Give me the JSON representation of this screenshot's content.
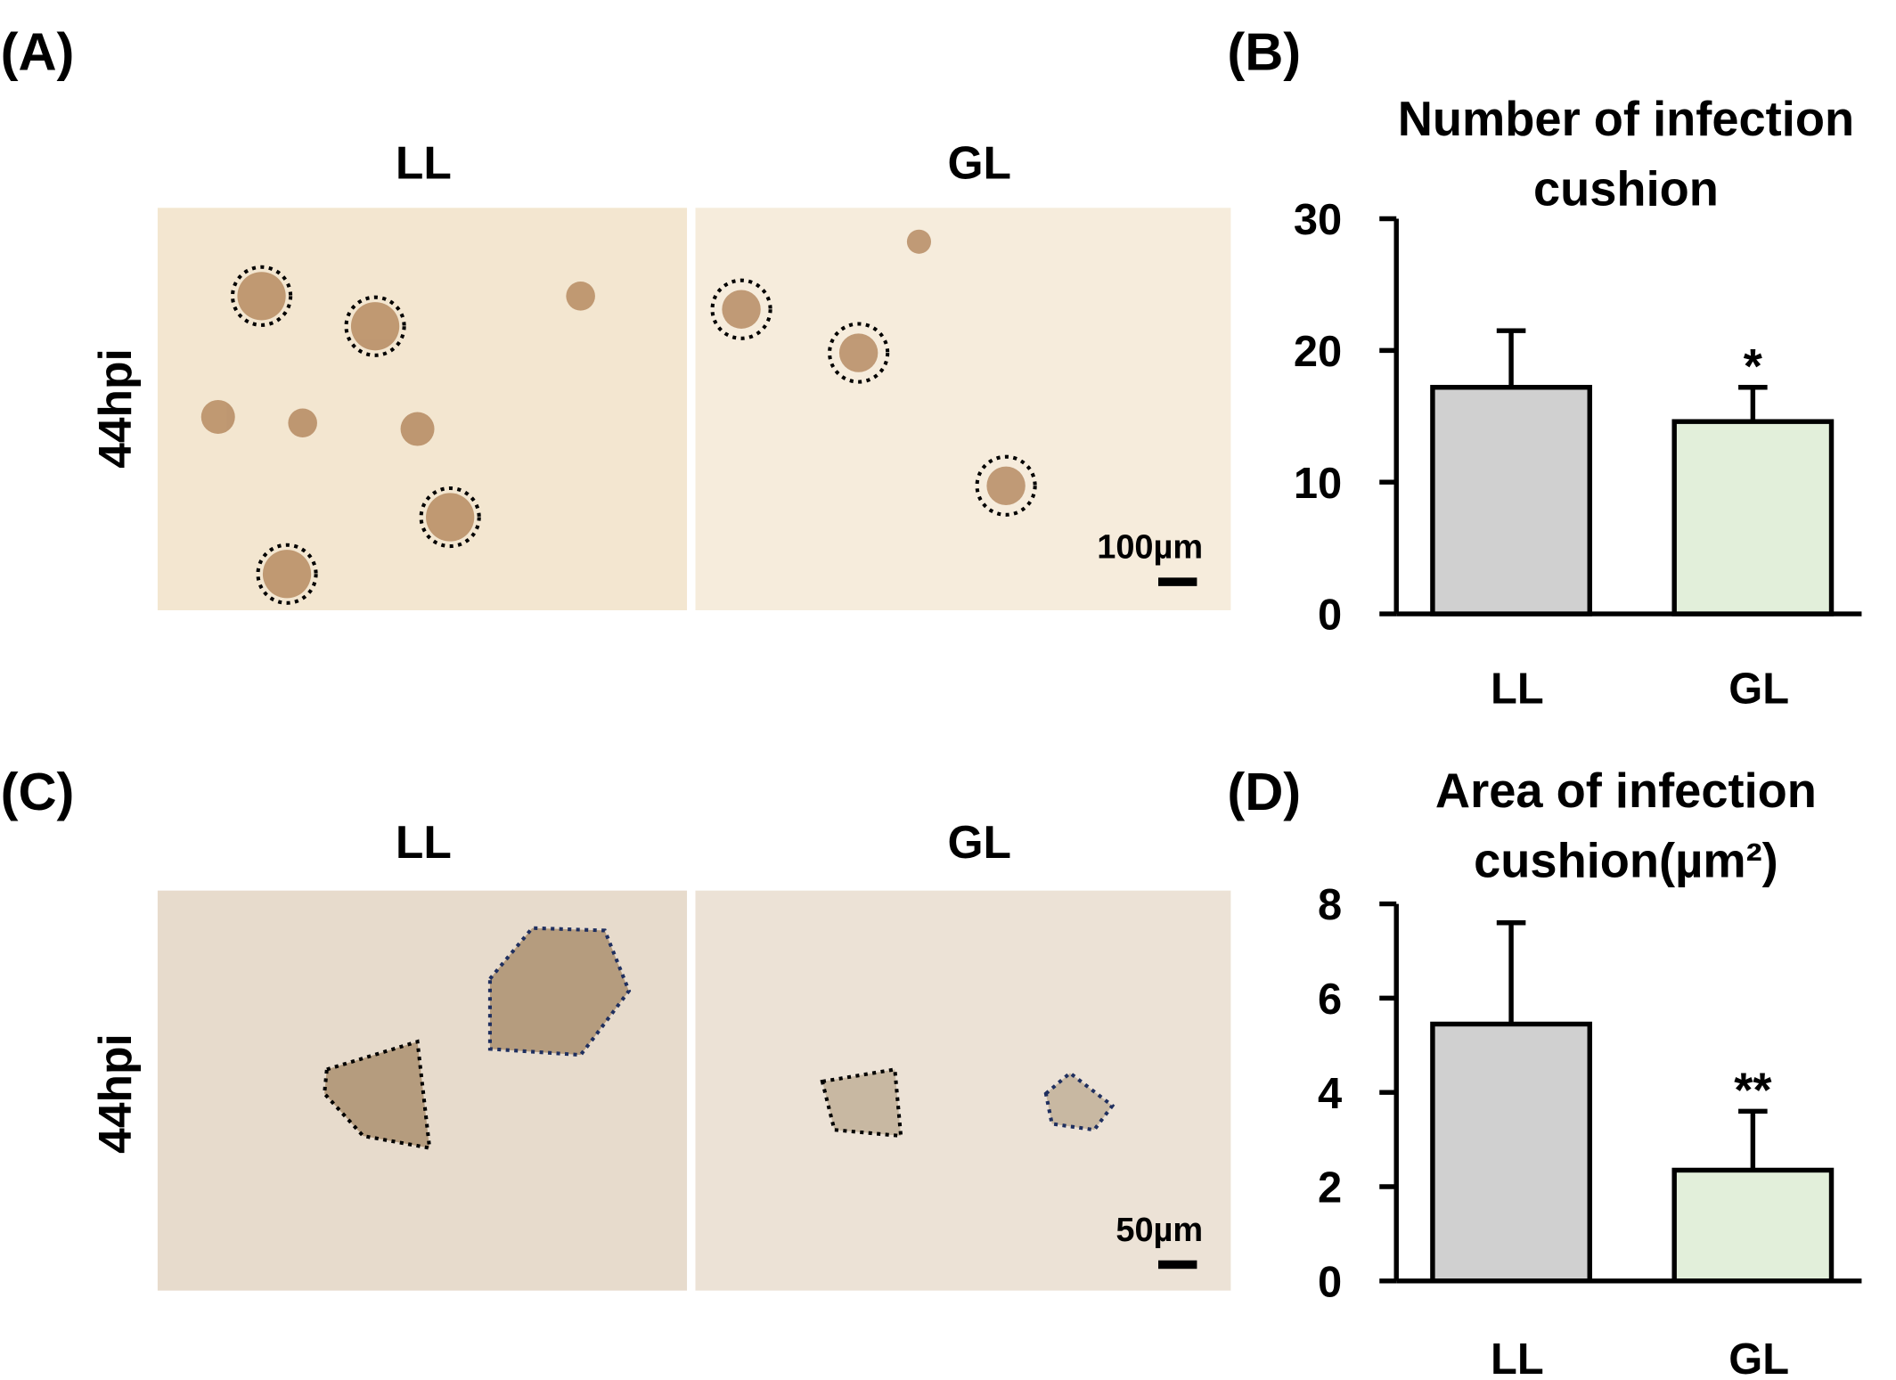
{
  "panels": [
    {
      "label": "(A)",
      "columns": [
        "LL",
        "GL"
      ],
      "row_label": "44hpi",
      "scale_bar": "100µm"
    },
    {
      "label": "(B)"
    },
    {
      "label": "(C)",
      "columns": [
        "LL",
        "GL"
      ],
      "row_label": "44hpi",
      "scale_bar": "50µm"
    },
    {
      "label": "(D)"
    }
  ],
  "chart_data": [
    {
      "type": "bar",
      "title": [
        "Number of infection",
        "cushion"
      ],
      "categories": [
        "LL",
        "GL"
      ],
      "values": [
        17.2,
        14.6
      ],
      "errors": [
        4.3,
        2.6
      ],
      "colors": [
        "#d0d0d0",
        "#e2efda"
      ],
      "significance": [
        null,
        "*"
      ],
      "ylim": [
        0,
        30
      ],
      "yticks": [
        0,
        10,
        20,
        30
      ]
    },
    {
      "type": "bar",
      "title": [
        "Area of infection",
        "cushion(µm²)"
      ],
      "categories": [
        "LL",
        "GL"
      ],
      "values": [
        5.45,
        2.35
      ],
      "errors": [
        2.15,
        1.25
      ],
      "colors": [
        "#d0d0d0",
        "#e2efda"
      ],
      "significance": [
        null,
        "**"
      ],
      "ylim": [
        0,
        8
      ],
      "yticks": [
        0,
        2,
        4,
        6,
        8
      ]
    }
  ]
}
